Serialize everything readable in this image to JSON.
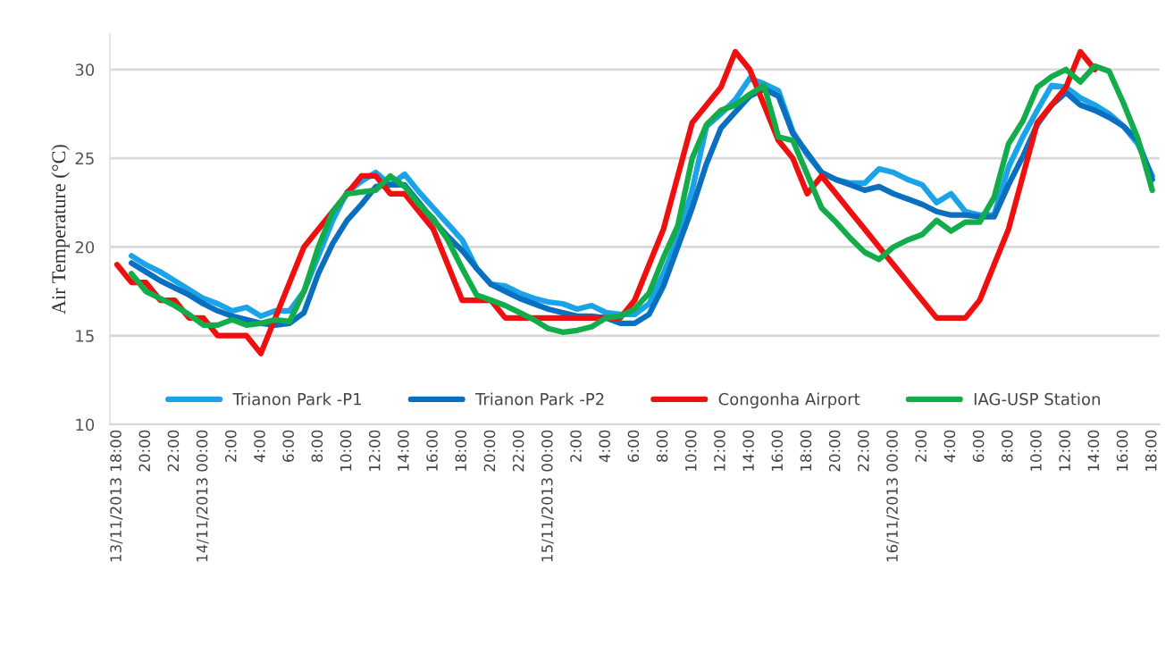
{
  "chart_data": {
    "type": "line",
    "ylabel": "Air Temperature (°C)",
    "ylim": [
      10,
      32
    ],
    "yticks": [
      10,
      15,
      20,
      25,
      30
    ],
    "grid": "y",
    "legend": "bottom",
    "line_style": "solid",
    "marker": "none",
    "categories": [
      "13/11/2013 18:00",
      null,
      "20:00",
      null,
      "22:00",
      null,
      "14/11/2013 00:00",
      null,
      "2:00",
      null,
      "4:00",
      null,
      "6:00",
      null,
      "8:00",
      null,
      "10:00",
      null,
      "12:00",
      null,
      "14:00",
      null,
      "16:00",
      null,
      "18:00",
      null,
      "20:00",
      null,
      "22:00",
      null,
      "15/11/2013 00:00",
      null,
      "2:00",
      null,
      "4:00",
      null,
      "6:00",
      null,
      "8:00",
      null,
      "10:00",
      null,
      "12:00",
      null,
      "14:00",
      null,
      "16:00",
      null,
      "18:00",
      null,
      "20:00",
      null,
      "22:00",
      null,
      "16/11/2013 00:00",
      null,
      "2:00",
      null,
      "4:00",
      null,
      "6:00",
      null,
      "8:00",
      null,
      "10:00",
      null,
      "12:00",
      null,
      "14:00",
      null,
      "16:00",
      null,
      "18:00"
    ],
    "series": [
      {
        "name": "Trianon Park -P1",
        "color": "#1aa3e8",
        "values": [
          null,
          19.5,
          19.0,
          18.6,
          18.1,
          17.6,
          17.1,
          16.8,
          16.4,
          16.6,
          16.1,
          16.4,
          16.4,
          17.5,
          19.5,
          21.5,
          23.1,
          23.7,
          24.2,
          23.5,
          24.1,
          23.1,
          22.2,
          21.3,
          20.4,
          18.8,
          17.9,
          17.8,
          17.4,
          17.1,
          16.9,
          16.8,
          16.5,
          16.7,
          16.3,
          16.2,
          16.2,
          16.8,
          18.5,
          20.5,
          23.2,
          26.8,
          27.5,
          28.3,
          29.5,
          29.2,
          28.8,
          26.5,
          25.2,
          24.2,
          23.8,
          23.6,
          23.6,
          24.4,
          24.2,
          23.8,
          23.5,
          22.5,
          23.0,
          22.0,
          21.8,
          21.8,
          24.5,
          26.2,
          27.7,
          29.1,
          29.0,
          28.4,
          28.0,
          27.5,
          26.8,
          25.8,
          24.0
        ]
      },
      {
        "name": "Trianon Park -P2",
        "color": "#0b6fbf",
        "values": [
          null,
          19.1,
          18.6,
          18.1,
          17.7,
          17.3,
          16.8,
          16.4,
          16.1,
          15.9,
          15.7,
          15.6,
          15.7,
          16.3,
          18.5,
          20.2,
          21.5,
          22.4,
          23.4,
          23.5,
          23.5,
          22.5,
          21.5,
          20.6,
          19.8,
          18.8,
          17.9,
          17.5,
          17.1,
          16.8,
          16.5,
          16.3,
          16.1,
          16.1,
          16.0,
          15.7,
          15.7,
          16.2,
          17.8,
          20.0,
          22.2,
          24.7,
          26.7,
          27.6,
          28.5,
          28.9,
          28.5,
          26.4,
          25.3,
          24.2,
          23.8,
          23.5,
          23.2,
          23.4,
          23.0,
          22.7,
          22.4,
          22.0,
          21.8,
          21.8,
          21.7,
          21.7,
          23.5,
          25.1,
          26.9,
          28.0,
          28.7,
          28.0,
          27.7,
          27.3,
          26.8,
          26.0,
          23.8
        ]
      },
      {
        "name": "Congonha Airport",
        "color": "#f00f0f",
        "values": [
          19,
          18,
          18,
          17,
          17,
          16,
          16,
          15,
          15,
          15,
          14,
          16,
          18,
          20,
          21,
          22,
          23,
          24,
          24,
          23,
          23,
          22,
          21,
          19,
          17,
          17,
          17,
          16,
          16,
          16,
          16,
          16,
          16,
          16,
          16,
          16,
          17,
          19,
          21,
          24,
          27,
          28,
          29,
          31,
          30,
          28,
          26,
          25,
          23,
          24,
          23,
          22,
          21,
          20,
          19,
          18,
          17,
          16,
          16,
          16,
          17,
          19,
          21,
          24,
          27,
          28,
          29,
          31,
          30,
          null,
          null,
          null,
          null
        ]
      },
      {
        "name": "IAG-USP Station",
        "color": "#12ad4a",
        "values": [
          null,
          18.5,
          17.5,
          17.1,
          16.7,
          16.2,
          15.6,
          15.6,
          15.9,
          15.6,
          15.7,
          15.9,
          15.8,
          17.5,
          20.0,
          22.0,
          23.0,
          23.1,
          23.2,
          24.0,
          23.4,
          22.4,
          21.6,
          20.4,
          18.8,
          17.3,
          17.0,
          16.7,
          16.3,
          15.9,
          15.4,
          15.2,
          15.3,
          15.5,
          16.0,
          16.1,
          16.5,
          17.4,
          19.4,
          21.2,
          25.0,
          26.9,
          27.7,
          28.0,
          28.6,
          29.1,
          26.2,
          26.0,
          24.1,
          22.2,
          21.4,
          20.5,
          19.7,
          19.3,
          20.0,
          20.4,
          20.7,
          21.5,
          20.9,
          21.4,
          21.4,
          22.8,
          25.8,
          27.1,
          29.0,
          29.6,
          30.0,
          29.3,
          30.2,
          29.9,
          28.1,
          26.1,
          23.2
        ]
      }
    ]
  }
}
